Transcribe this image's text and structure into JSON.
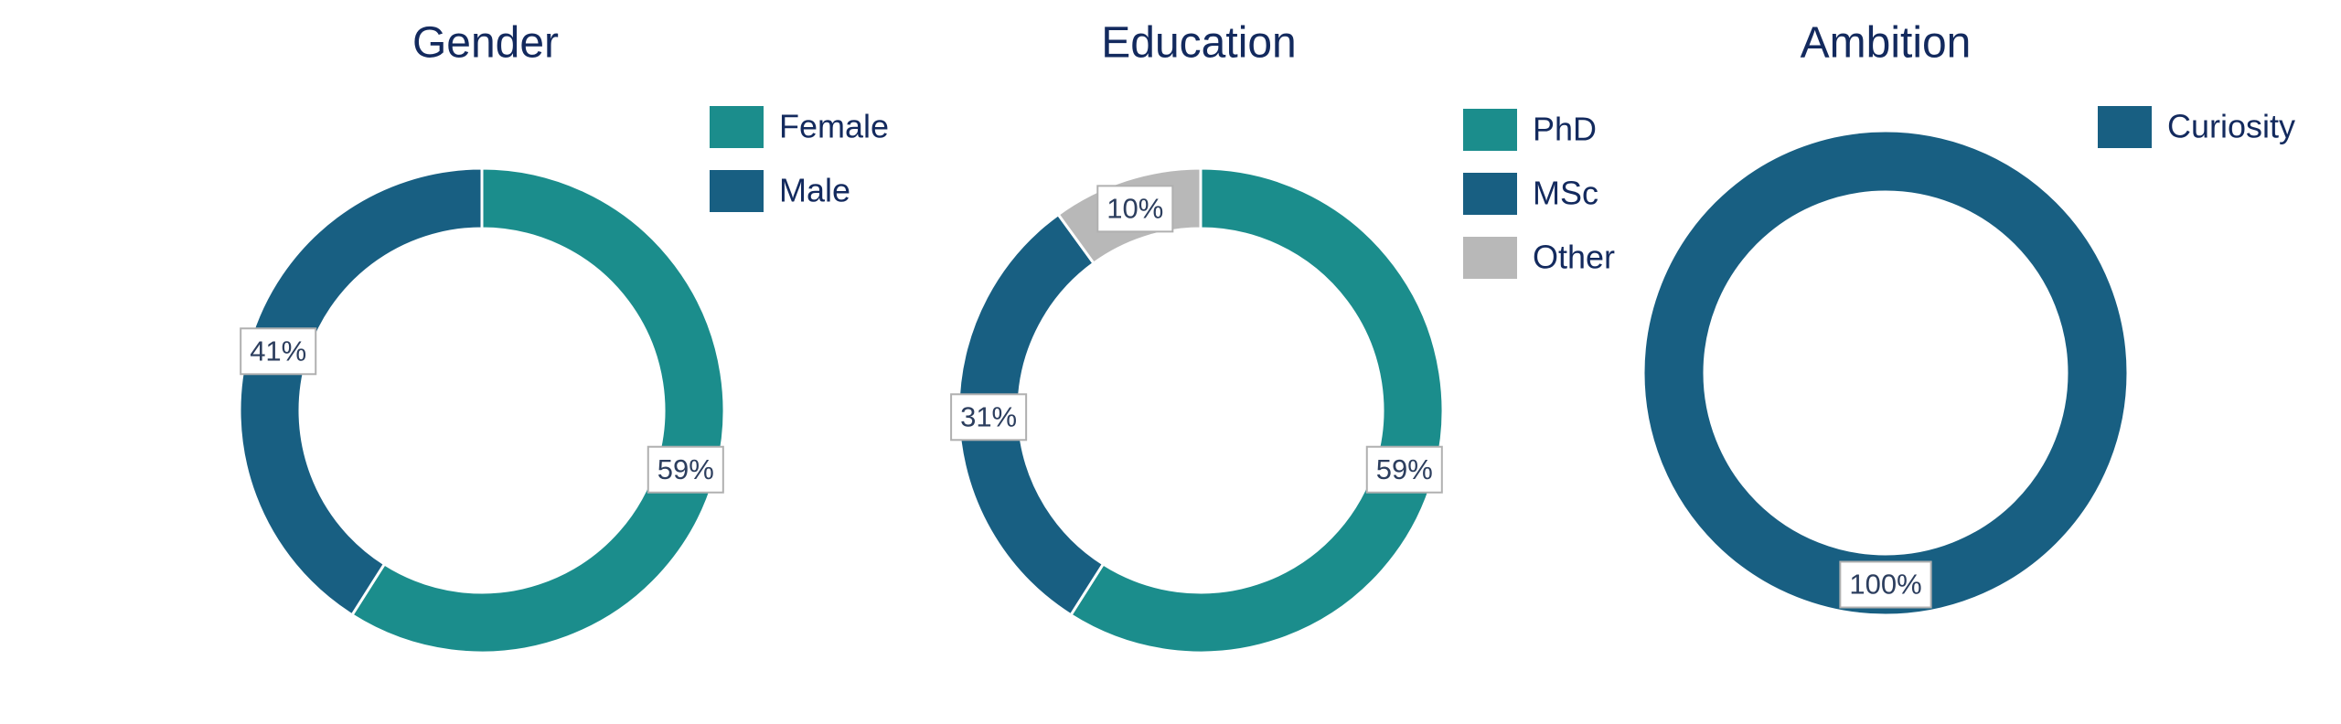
{
  "chart_data": [
    {
      "type": "donut",
      "title": "Gender",
      "categories": [
        "Female",
        "Male"
      ],
      "values": [
        59,
        41
      ],
      "value_labels": [
        "59%",
        "41%"
      ],
      "colors": [
        "#1b8d8c",
        "#185f82"
      ],
      "legend": "top-right"
    },
    {
      "type": "donut",
      "title": "Education",
      "categories": [
        "PhD",
        "MSc",
        "Other"
      ],
      "values": [
        59,
        31,
        10
      ],
      "value_labels": [
        "59%",
        "31%",
        "10%"
      ],
      "colors": [
        "#1b8d8c",
        "#185f82",
        "#b8b8b8"
      ],
      "legend": "top-right"
    },
    {
      "type": "donut",
      "title": "Ambition",
      "categories": [
        "Curiosity"
      ],
      "values": [
        100
      ],
      "value_labels": [
        "100%"
      ],
      "colors": [
        "#185f82"
      ],
      "legend": "top-right"
    }
  ]
}
